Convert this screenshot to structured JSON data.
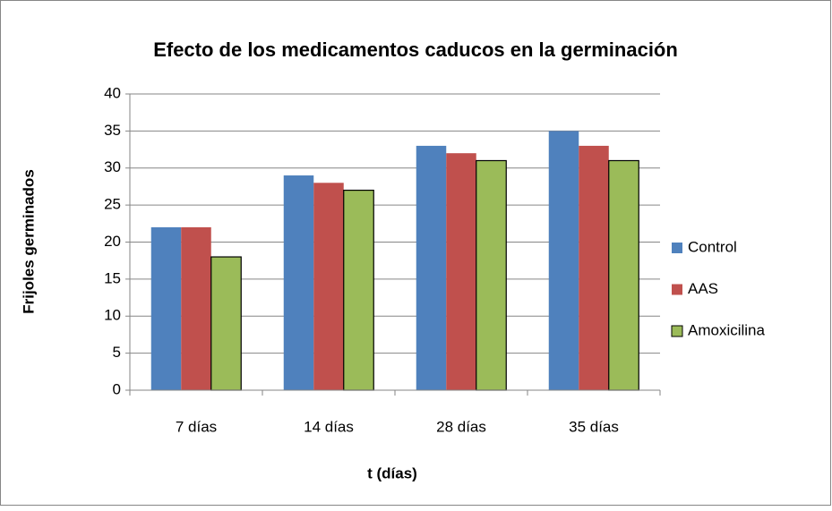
{
  "chart_data": {
    "type": "bar",
    "title": "Efecto de los medicamentos caducos en la germinación",
    "x_label": "t (días)",
    "y_label": "Frijoles germinados",
    "categories": [
      "7 días",
      "14 días",
      "28 días",
      "35 días"
    ],
    "series": [
      {
        "name": "Control",
        "color": "#4f81bd",
        "values": [
          22,
          29,
          33,
          35
        ]
      },
      {
        "name": "AAS",
        "color": "#c0504d",
        "values": [
          22,
          28,
          32,
          33
        ]
      },
      {
        "name": "Amoxicilina",
        "color": "#9bbb59",
        "values": [
          18,
          27,
          31,
          31
        ]
      }
    ],
    "ylim": [
      0,
      40
    ],
    "yticks": [
      0,
      5,
      10,
      15,
      20,
      25,
      30,
      35,
      40
    ],
    "grid": true,
    "legend": "right"
  }
}
